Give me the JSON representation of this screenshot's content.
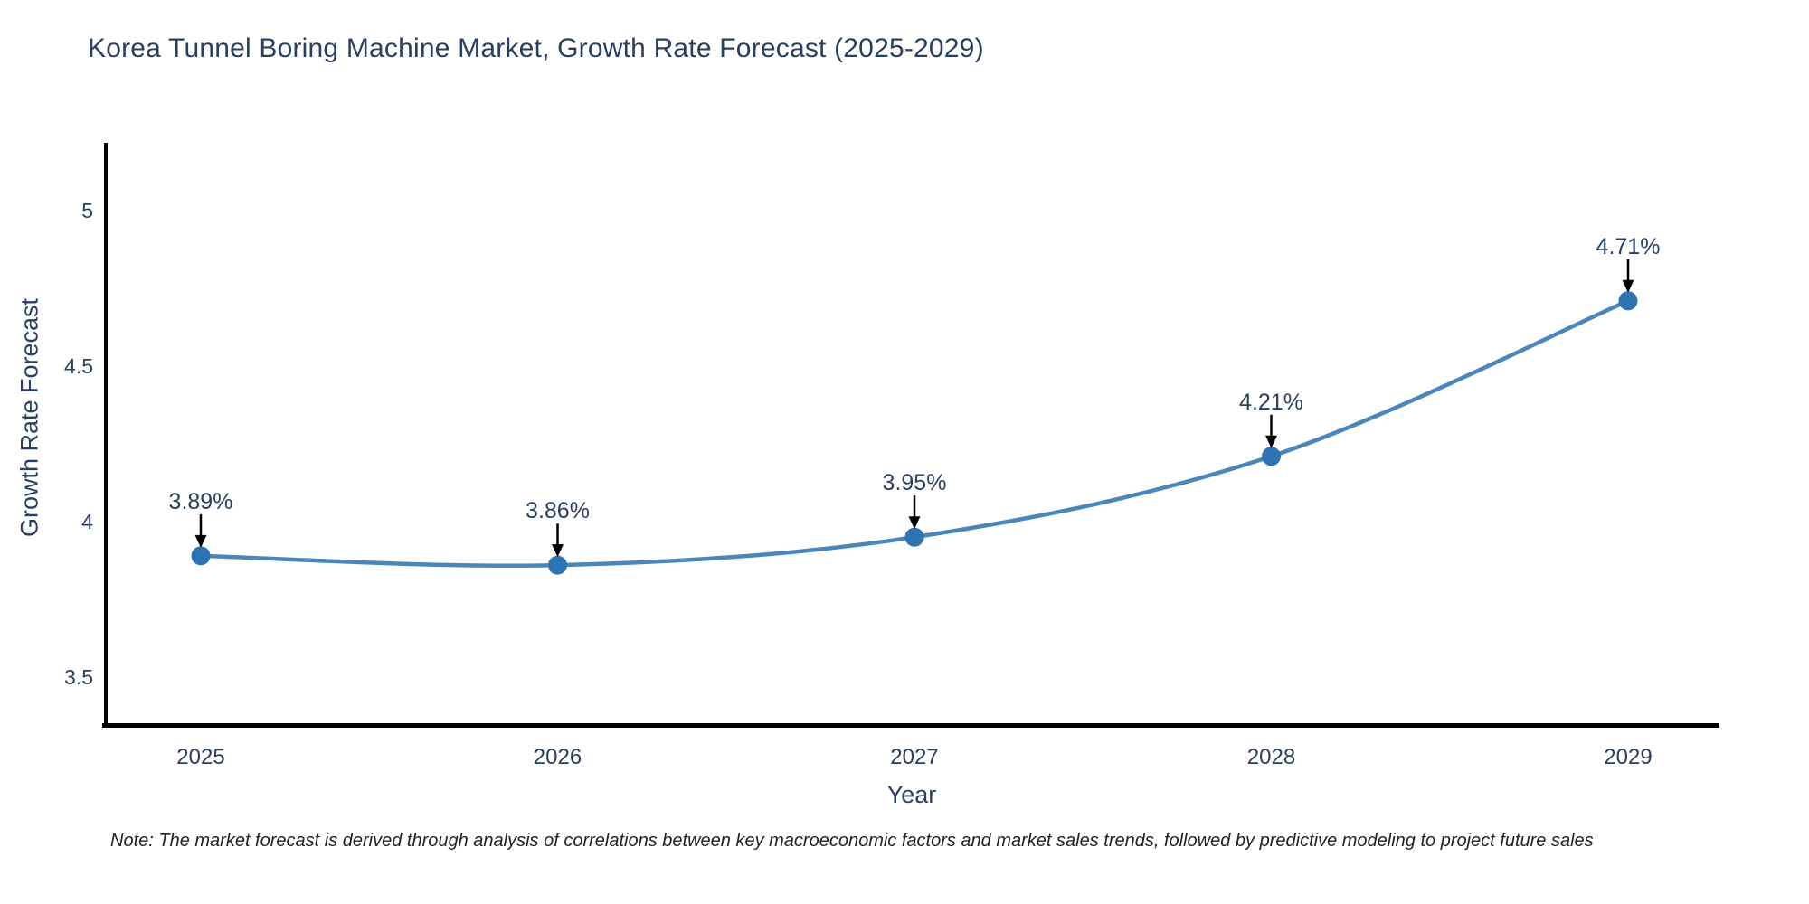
{
  "page": {
    "title": "Korea Tunnel Boring Machine Market, Growth Rate Forecast (2025-2029)",
    "note": "Note: The market forecast is derived through analysis of correlations between key macroeconomic factors and market sales trends, followed by predictive modeling to project future sales"
  },
  "chart_data": {
    "type": "line",
    "title": "Korea Tunnel Boring Machine Market, Growth Rate Forecast (2025-2029)",
    "xlabel": "Year",
    "ylabel": "Growth Rate Forecast",
    "categories": [
      "2025",
      "2026",
      "2027",
      "2028",
      "2029"
    ],
    "series": [
      {
        "name": "Growth Rate Forecast",
        "values": [
          3.89,
          3.86,
          3.95,
          4.21,
          4.71
        ]
      }
    ],
    "point_labels": [
      "3.89%",
      "3.86%",
      "3.95%",
      "4.21%",
      "4.71%"
    ],
    "y_ticks": [
      "3.5",
      "4",
      "4.5",
      "5"
    ],
    "y_tick_values": [
      3.5,
      4,
      4.5,
      5
    ],
    "ylim": [
      3.35,
      5.22
    ],
    "grid": false,
    "legend": "none",
    "annotation_style": "value label with black arrow pointing down to each marker",
    "line_color": "#4a86ba",
    "marker_color": "#2e74b5",
    "axis_line_color": "#000000",
    "arrow_color": "#000000",
    "text_color": "#2a3f5f",
    "background_color": "#ffffff"
  }
}
